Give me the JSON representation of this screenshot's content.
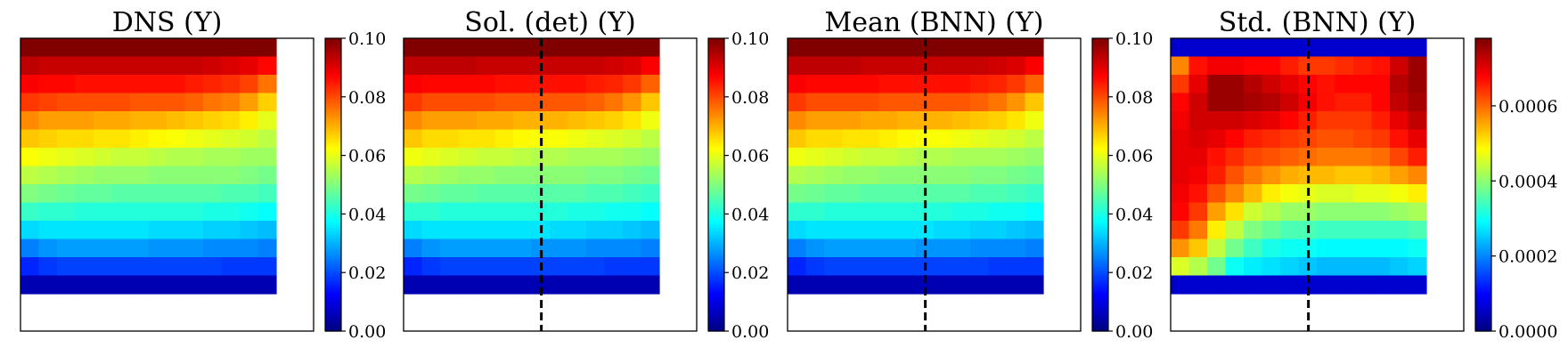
{
  "chart_data": [
    {
      "type": "heatmap",
      "title": "DNS (Y)",
      "rows": 14,
      "cols": 14,
      "grid": false,
      "dashed_vertical_line": false,
      "colormap": "jet",
      "colorbar": {
        "vmin": 0.0,
        "vmax": 0.1,
        "ticks": [
          0.0,
          0.02,
          0.04,
          0.06,
          0.08,
          0.1
        ],
        "tick_labels": [
          "0.00",
          "0.02",
          "0.04",
          "0.06",
          "0.08",
          "0.10"
        ]
      },
      "values": [
        [
          0.1,
          0.1,
          0.1,
          0.1,
          0.1,
          0.1,
          0.1,
          0.1,
          0.1,
          0.1,
          0.1,
          0.1,
          0.1,
          0.1
        ],
        [
          0.094,
          0.093,
          0.093,
          0.093,
          0.093,
          0.093,
          0.093,
          0.093,
          0.093,
          0.093,
          0.092,
          0.091,
          0.09,
          0.087
        ],
        [
          0.088,
          0.087,
          0.087,
          0.086,
          0.086,
          0.086,
          0.086,
          0.086,
          0.086,
          0.085,
          0.084,
          0.083,
          0.081,
          0.076
        ],
        [
          0.082,
          0.081,
          0.08,
          0.08,
          0.08,
          0.08,
          0.079,
          0.079,
          0.079,
          0.078,
          0.076,
          0.075,
          0.072,
          0.067
        ],
        [
          0.074,
          0.072,
          0.072,
          0.072,
          0.071,
          0.071,
          0.07,
          0.07,
          0.069,
          0.068,
          0.067,
          0.066,
          0.064,
          0.06
        ],
        [
          0.068,
          0.067,
          0.066,
          0.066,
          0.065,
          0.065,
          0.064,
          0.063,
          0.062,
          0.061,
          0.06,
          0.059,
          0.058,
          0.056
        ],
        [
          0.062,
          0.061,
          0.06,
          0.059,
          0.058,
          0.057,
          0.057,
          0.056,
          0.055,
          0.055,
          0.054,
          0.054,
          0.053,
          0.053
        ],
        [
          0.056,
          0.055,
          0.054,
          0.053,
          0.052,
          0.052,
          0.052,
          0.051,
          0.051,
          0.051,
          0.051,
          0.051,
          0.05,
          0.049
        ],
        [
          0.05,
          0.049,
          0.048,
          0.047,
          0.047,
          0.046,
          0.046,
          0.046,
          0.046,
          0.046,
          0.046,
          0.045,
          0.045,
          0.044
        ],
        [
          0.043,
          0.042,
          0.042,
          0.041,
          0.041,
          0.041,
          0.041,
          0.041,
          0.041,
          0.041,
          0.04,
          0.04,
          0.039,
          0.038
        ],
        [
          0.034,
          0.035,
          0.035,
          0.035,
          0.035,
          0.035,
          0.035,
          0.034,
          0.034,
          0.034,
          0.033,
          0.033,
          0.032,
          0.031
        ],
        [
          0.025,
          0.027,
          0.028,
          0.028,
          0.028,
          0.028,
          0.028,
          0.027,
          0.027,
          0.027,
          0.026,
          0.026,
          0.026,
          0.025
        ],
        [
          0.016,
          0.018,
          0.019,
          0.019,
          0.019,
          0.019,
          0.019,
          0.019,
          0.019,
          0.019,
          0.019,
          0.018,
          0.018,
          0.018
        ],
        [
          0.005,
          0.005,
          0.005,
          0.005,
          0.005,
          0.005,
          0.005,
          0.005,
          0.005,
          0.005,
          0.005,
          0.005,
          0.005,
          0.005
        ]
      ]
    },
    {
      "type": "heatmap",
      "title": "Sol. (det) (Y)",
      "rows": 14,
      "cols": 14,
      "grid": false,
      "dashed_vertical_line": true,
      "colormap": "jet",
      "colorbar": {
        "vmin": 0.0,
        "vmax": 0.1,
        "ticks": [
          0.0,
          0.02,
          0.04,
          0.06,
          0.08,
          0.1
        ],
        "tick_labels": [
          "0.00",
          "0.02",
          "0.04",
          "0.06",
          "0.08",
          "0.10"
        ]
      },
      "values": [
        [
          0.1,
          0.1,
          0.1,
          0.1,
          0.1,
          0.1,
          0.1,
          0.1,
          0.1,
          0.1,
          0.1,
          0.1,
          0.1,
          0.1
        ],
        [
          0.094,
          0.094,
          0.094,
          0.094,
          0.093,
          0.093,
          0.093,
          0.093,
          0.093,
          0.093,
          0.093,
          0.092,
          0.091,
          0.088
        ],
        [
          0.088,
          0.087,
          0.087,
          0.087,
          0.087,
          0.086,
          0.086,
          0.086,
          0.086,
          0.086,
          0.085,
          0.084,
          0.082,
          0.078
        ],
        [
          0.082,
          0.08,
          0.08,
          0.08,
          0.08,
          0.079,
          0.079,
          0.079,
          0.079,
          0.079,
          0.078,
          0.076,
          0.073,
          0.068
        ],
        [
          0.074,
          0.072,
          0.072,
          0.072,
          0.071,
          0.071,
          0.07,
          0.07,
          0.07,
          0.069,
          0.068,
          0.067,
          0.065,
          0.061
        ],
        [
          0.068,
          0.066,
          0.066,
          0.065,
          0.065,
          0.064,
          0.063,
          0.062,
          0.062,
          0.061,
          0.06,
          0.059,
          0.058,
          0.056
        ],
        [
          0.061,
          0.06,
          0.059,
          0.058,
          0.057,
          0.057,
          0.056,
          0.055,
          0.055,
          0.054,
          0.054,
          0.054,
          0.053,
          0.052
        ],
        [
          0.055,
          0.054,
          0.053,
          0.052,
          0.052,
          0.051,
          0.051,
          0.051,
          0.051,
          0.051,
          0.05,
          0.05,
          0.049,
          0.048
        ],
        [
          0.049,
          0.048,
          0.047,
          0.047,
          0.046,
          0.046,
          0.046,
          0.046,
          0.046,
          0.046,
          0.045,
          0.045,
          0.044,
          0.043
        ],
        [
          0.042,
          0.042,
          0.041,
          0.041,
          0.041,
          0.041,
          0.041,
          0.041,
          0.041,
          0.04,
          0.04,
          0.039,
          0.039,
          0.038
        ],
        [
          0.034,
          0.035,
          0.035,
          0.035,
          0.035,
          0.035,
          0.035,
          0.035,
          0.034,
          0.034,
          0.033,
          0.033,
          0.032,
          0.031
        ],
        [
          0.025,
          0.027,
          0.028,
          0.028,
          0.028,
          0.028,
          0.028,
          0.027,
          0.027,
          0.027,
          0.026,
          0.026,
          0.026,
          0.025
        ],
        [
          0.016,
          0.018,
          0.019,
          0.019,
          0.019,
          0.019,
          0.019,
          0.019,
          0.019,
          0.019,
          0.019,
          0.018,
          0.018,
          0.018
        ],
        [
          0.005,
          0.005,
          0.005,
          0.005,
          0.005,
          0.005,
          0.005,
          0.005,
          0.005,
          0.005,
          0.005,
          0.005,
          0.005,
          0.005
        ]
      ]
    },
    {
      "type": "heatmap",
      "title": "Mean (BNN) (Y)",
      "rows": 14,
      "cols": 14,
      "grid": false,
      "dashed_vertical_line": true,
      "colormap": "jet",
      "colorbar": {
        "vmin": 0.0,
        "vmax": 0.1,
        "ticks": [
          0.0,
          0.02,
          0.04,
          0.06,
          0.08,
          0.1
        ],
        "tick_labels": [
          "0.00",
          "0.02",
          "0.04",
          "0.06",
          "0.08",
          "0.10"
        ]
      },
      "values": [
        [
          0.1,
          0.1,
          0.1,
          0.1,
          0.1,
          0.1,
          0.1,
          0.1,
          0.1,
          0.1,
          0.1,
          0.1,
          0.1,
          0.1
        ],
        [
          0.094,
          0.094,
          0.094,
          0.094,
          0.093,
          0.093,
          0.093,
          0.093,
          0.093,
          0.093,
          0.093,
          0.092,
          0.091,
          0.088
        ],
        [
          0.088,
          0.087,
          0.087,
          0.087,
          0.087,
          0.086,
          0.086,
          0.086,
          0.086,
          0.086,
          0.085,
          0.084,
          0.082,
          0.078
        ],
        [
          0.082,
          0.08,
          0.08,
          0.08,
          0.08,
          0.079,
          0.079,
          0.079,
          0.079,
          0.079,
          0.078,
          0.076,
          0.073,
          0.068
        ],
        [
          0.074,
          0.072,
          0.072,
          0.072,
          0.071,
          0.071,
          0.07,
          0.07,
          0.07,
          0.069,
          0.068,
          0.067,
          0.065,
          0.061
        ],
        [
          0.068,
          0.066,
          0.066,
          0.065,
          0.065,
          0.064,
          0.063,
          0.062,
          0.062,
          0.061,
          0.06,
          0.059,
          0.058,
          0.056
        ],
        [
          0.061,
          0.06,
          0.059,
          0.058,
          0.057,
          0.057,
          0.056,
          0.055,
          0.055,
          0.054,
          0.054,
          0.054,
          0.053,
          0.052
        ],
        [
          0.055,
          0.054,
          0.053,
          0.052,
          0.052,
          0.051,
          0.051,
          0.051,
          0.051,
          0.051,
          0.05,
          0.05,
          0.049,
          0.048
        ],
        [
          0.049,
          0.048,
          0.047,
          0.047,
          0.046,
          0.046,
          0.046,
          0.046,
          0.046,
          0.046,
          0.045,
          0.045,
          0.044,
          0.043
        ],
        [
          0.042,
          0.042,
          0.041,
          0.041,
          0.041,
          0.041,
          0.041,
          0.041,
          0.041,
          0.04,
          0.04,
          0.039,
          0.039,
          0.038
        ],
        [
          0.034,
          0.035,
          0.035,
          0.035,
          0.035,
          0.035,
          0.035,
          0.035,
          0.034,
          0.034,
          0.033,
          0.033,
          0.032,
          0.031
        ],
        [
          0.025,
          0.027,
          0.028,
          0.028,
          0.028,
          0.028,
          0.028,
          0.027,
          0.027,
          0.027,
          0.026,
          0.026,
          0.026,
          0.025
        ],
        [
          0.016,
          0.018,
          0.019,
          0.019,
          0.019,
          0.019,
          0.019,
          0.019,
          0.019,
          0.019,
          0.019,
          0.018,
          0.018,
          0.018
        ],
        [
          0.005,
          0.005,
          0.005,
          0.005,
          0.005,
          0.005,
          0.005,
          0.005,
          0.005,
          0.005,
          0.005,
          0.005,
          0.005,
          0.005
        ]
      ]
    },
    {
      "type": "heatmap",
      "title": "Std. (BNN) (Y)",
      "rows": 14,
      "cols": 14,
      "grid": false,
      "dashed_vertical_line": true,
      "colormap": "jet",
      "colorbar": {
        "vmin": 0.0,
        "vmax": 0.00078,
        "ticks": [
          0.0,
          0.0002,
          0.0004,
          0.0006
        ],
        "tick_labels": [
          "0.0000",
          "0.0002",
          "0.0004",
          "0.0006"
        ]
      },
      "values": [
        [
          6e-05,
          6e-05,
          6e-05,
          6e-05,
          6e-05,
          6e-05,
          6e-05,
          6e-05,
          6e-05,
          6e-05,
          6e-05,
          6e-05,
          6e-05,
          6e-05
        ],
        [
          0.00058,
          0.00067,
          0.00069,
          0.00069,
          0.00068,
          0.00068,
          0.00066,
          0.00064,
          0.00064,
          0.00065,
          0.00066,
          0.00067,
          0.00072,
          0.00076
        ],
        [
          0.00064,
          0.0007,
          0.00076,
          0.00076,
          0.00074,
          0.00072,
          0.0007,
          0.00068,
          0.00067,
          0.00068,
          0.00068,
          0.00068,
          0.00074,
          0.00076
        ],
        [
          0.00068,
          0.00072,
          0.00076,
          0.00076,
          0.00075,
          0.00074,
          0.00072,
          0.00069,
          0.00067,
          0.00066,
          0.00066,
          0.00068,
          0.00073,
          0.00075
        ],
        [
          0.00069,
          0.00072,
          0.00072,
          0.00072,
          0.00071,
          0.0007,
          0.00068,
          0.00066,
          0.00064,
          0.00064,
          0.00064,
          0.00066,
          0.0007,
          0.00073
        ],
        [
          0.0007,
          0.00071,
          0.0007,
          0.00068,
          0.00066,
          0.00065,
          0.00064,
          0.00063,
          0.00062,
          0.00062,
          0.00063,
          0.00064,
          0.00067,
          0.0007
        ],
        [
          0.0007,
          0.0007,
          0.00067,
          0.00065,
          0.00063,
          0.00062,
          0.00061,
          0.0006,
          0.00059,
          0.00059,
          0.00059,
          0.0006,
          0.00063,
          0.00066
        ],
        [
          0.0007,
          0.00069,
          0.00066,
          0.00062,
          0.00059,
          0.00057,
          0.00055,
          0.00054,
          0.00054,
          0.00053,
          0.00053,
          0.00054,
          0.00056,
          0.00058
        ],
        [
          0.00069,
          0.00067,
          0.00062,
          0.00058,
          0.00054,
          0.0005,
          0.00048,
          0.00047,
          0.00046,
          0.00046,
          0.00047,
          0.00047,
          0.00048,
          0.0005
        ],
        [
          0.00068,
          0.00064,
          0.00056,
          0.00051,
          0.00045,
          0.00043,
          0.00041,
          0.00041,
          0.0004,
          0.0004,
          0.0004,
          0.0004,
          0.00041,
          0.00042
        ],
        [
          0.00064,
          0.00059,
          0.0005,
          0.00044,
          0.00039,
          0.00037,
          0.00035,
          0.00035,
          0.00034,
          0.00034,
          0.00034,
          0.00034,
          0.00034,
          0.00035
        ],
        [
          0.00057,
          0.00053,
          0.00044,
          0.00038,
          0.00034,
          0.00031,
          0.0003,
          0.0003,
          0.00029,
          0.00029,
          0.00029,
          0.00029,
          0.00029,
          0.0003
        ],
        [
          0.00046,
          0.00043,
          0.00038,
          0.0003,
          0.00028,
          0.00027,
          0.00026,
          0.00025,
          0.00024,
          0.00024,
          0.00024,
          0.00024,
          0.00025,
          0.00026
        ],
        [
          6e-05,
          6e-05,
          6e-05,
          6e-05,
          6e-05,
          6e-05,
          6e-05,
          6e-05,
          6e-05,
          6e-05,
          6e-05,
          6e-05,
          6e-05,
          6e-05
        ]
      ]
    }
  ]
}
